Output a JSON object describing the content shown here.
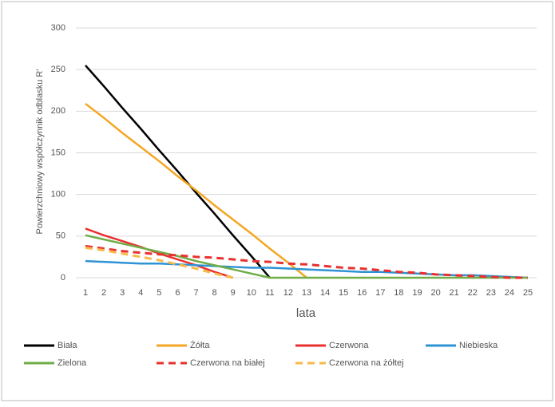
{
  "chart_data": {
    "type": "line",
    "x_label": "lata",
    "y_label": "Powierzchniowy współczynnik odblasku R'",
    "categories": [
      "1",
      "2",
      "3",
      "4",
      "5",
      "6",
      "7",
      "8",
      "9",
      "10",
      "11",
      "12",
      "13",
      "14",
      "15",
      "16",
      "17",
      "18",
      "19",
      "20",
      "21",
      "22",
      "23",
      "24",
      "25"
    ],
    "ylim": [
      0,
      300
    ],
    "yticks": [
      0,
      50,
      100,
      150,
      200,
      250,
      300
    ],
    "grid": true,
    "series": [
      {
        "name": "Biała",
        "color": "#000000",
        "dashed": false,
        "values": [
          255,
          230,
          204,
          179,
          153,
          128,
          102,
          77,
          51,
          26,
          0,
          null,
          null,
          null,
          null,
          null,
          null,
          null,
          null,
          null,
          null,
          null,
          null,
          null,
          null
        ]
      },
      {
        "name": "Żółta",
        "color": "#f5a623",
        "dashed": false,
        "values": [
          209,
          192,
          174,
          157,
          140,
          122,
          105,
          87,
          70,
          53,
          35,
          18,
          0,
          null,
          null,
          null,
          null,
          null,
          null,
          null,
          null,
          null,
          null,
          null,
          null
        ]
      },
      {
        "name": "Czerwona",
        "color": "#e8312f",
        "dashed": false,
        "values": [
          59,
          51,
          44,
          37,
          29,
          22,
          15,
          7,
          0,
          null,
          null,
          null,
          null,
          null,
          null,
          null,
          null,
          null,
          null,
          null,
          null,
          null,
          null,
          null,
          null
        ]
      },
      {
        "name": "Niebieska",
        "color": "#2e93d4",
        "dashed": false,
        "values": [
          20,
          19,
          18,
          17,
          17,
          16,
          15,
          14,
          13,
          12,
          12,
          11,
          10,
          9,
          8,
          7,
          7,
          6,
          5,
          4,
          3,
          3,
          2,
          1,
          0
        ]
      },
      {
        "name": "Zielona",
        "color": "#70ad47",
        "dashed": false,
        "values": [
          51,
          46,
          41,
          36,
          31,
          26,
          20,
          15,
          10,
          5,
          0,
          0,
          0,
          0,
          0,
          0,
          0,
          0,
          0,
          0,
          0,
          0,
          0,
          0,
          0
        ]
      },
      {
        "name": "Czerwona na białej",
        "color": "#e8312f",
        "dashed": true,
        "values": [
          38,
          35,
          32,
          30,
          28,
          27,
          25,
          24,
          22,
          20,
          19,
          17,
          16,
          14,
          12,
          11,
          9,
          7,
          6,
          4,
          3,
          2,
          1,
          0,
          0
        ]
      },
      {
        "name": "Czerwona na żółtej",
        "color": "#f9b94a",
        "dashed": true,
        "values": [
          36,
          33,
          29,
          25,
          21,
          16,
          11,
          5,
          0,
          null,
          null,
          null,
          null,
          null,
          null,
          null,
          null,
          null,
          null,
          null,
          null,
          null,
          null,
          null,
          null
        ]
      }
    ]
  }
}
